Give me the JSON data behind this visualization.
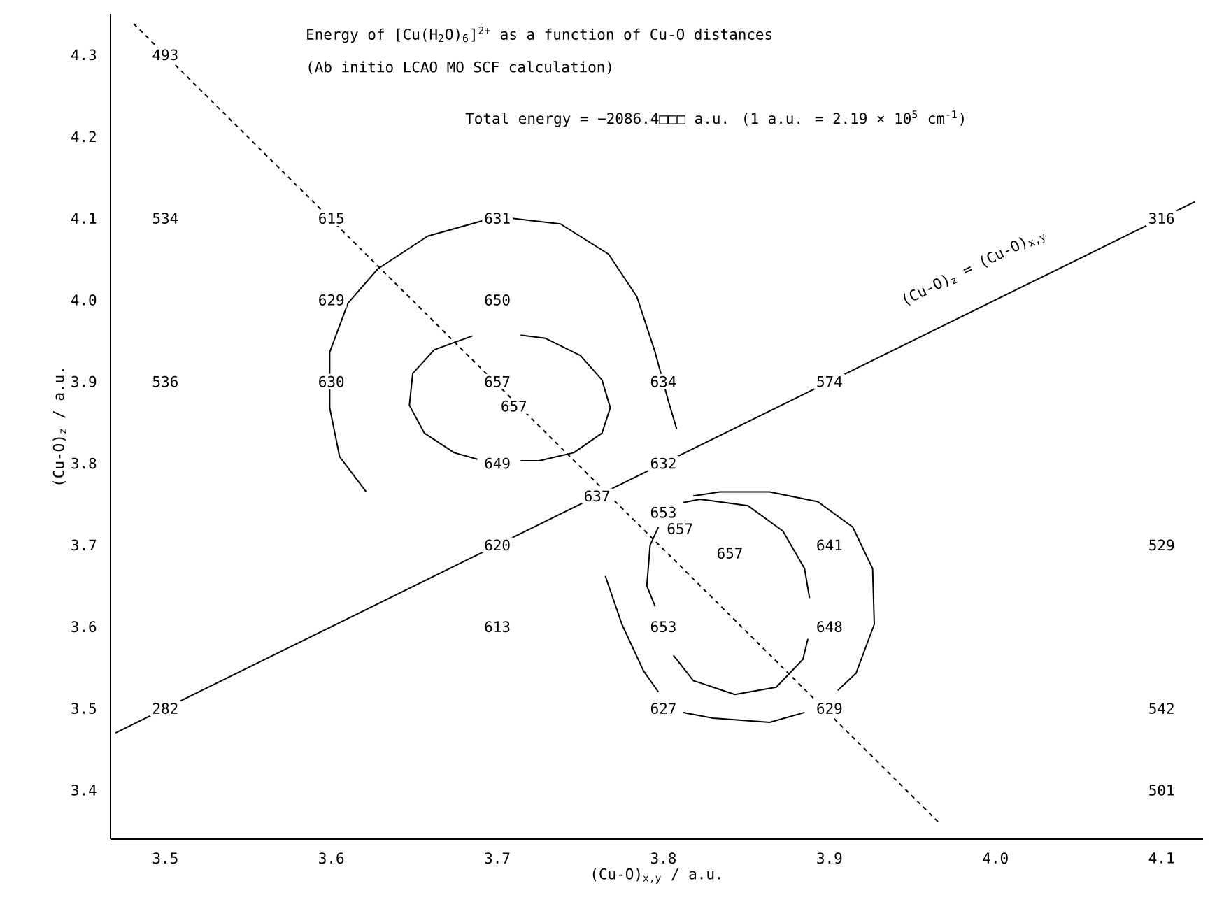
{
  "chart_data": {
    "type": "line",
    "title": "Energy of [Cu(H$_{2}$O)$_{6}$]$^{2+}$ as a function of Cu-O distances",
    "subtitle": "(Ab initio LCAO MO SCF calculation)",
    "xlabel": "(Cu-O)$_{x,y}$ / a.u.",
    "ylabel": "(Cu-O)$_{z}$ / a.u.",
    "xlim": [
      3.467,
      4.125
    ],
    "ylim": [
      3.34,
      4.35
    ],
    "xticks": [
      3.5,
      3.6,
      3.7,
      3.8,
      3.9,
      {
        "value": 4.0,
        "label": "4.0"
      },
      4.1
    ],
    "yticks": [
      3.4,
      3.5,
      3.6,
      3.7,
      3.8,
      3.9,
      {
        "value": 4.0,
        "label": "4.0"
      },
      4.1,
      4.2,
      4.3
    ],
    "grid": false,
    "series": [
      {
        "color": "#000000",
        "x": [
          3.47,
          4.12
        ],
        "values": [
          3.47,
          4.12
        ]
      },
      {
        "color": "#000000",
        "line_style": "dashed",
        "x": [
          3.481,
          3.967
        ],
        "values": [
          4.338,
          3.358
        ]
      },
      {
        "color": "#000000",
        "x": [
          3.685,
          3.662,
          3.649,
          3.647,
          3.656,
          3.674,
          3.688
        ],
        "values": [
          3.956,
          3.939,
          3.91,
          3.871,
          3.837,
          3.813,
          3.805
        ]
      },
      {
        "color": "#000000",
        "x": [
          3.714,
          3.729,
          3.75,
          3.763,
          3.768,
          3.763,
          3.746,
          3.725,
          3.714
        ],
        "values": [
          3.957,
          3.953,
          3.932,
          3.902,
          3.868,
          3.837,
          3.813,
          3.803,
          3.803
        ]
      },
      {
        "color": "#000000",
        "x": [
          3.621,
          3.605,
          3.599,
          3.599,
          3.61,
          3.628,
          3.658,
          3.7,
          3.738,
          3.767,
          3.784,
          3.795,
          3.803,
          3.808
        ],
        "values": [
          3.765,
          3.808,
          3.868,
          3.936,
          3.996,
          4.038,
          4.078,
          4.102,
          4.093,
          4.056,
          4.004,
          3.936,
          3.876,
          3.842
        ]
      },
      {
        "color": "#000000",
        "x": [
          3.812,
          3.822,
          3.851,
          3.872,
          3.885,
          3.888
        ],
        "values": [
          3.752,
          3.756,
          3.748,
          3.717,
          3.671,
          3.635
        ]
      },
      {
        "color": "#000000",
        "x": [
          3.887,
          3.884,
          3.868,
          3.843,
          3.818,
          3.806
        ],
        "values": [
          3.585,
          3.56,
          3.526,
          3.517,
          3.534,
          3.565
        ]
      },
      {
        "color": "#000000",
        "x": [
          3.795,
          3.79,
          3.792,
          3.797
        ],
        "values": [
          3.625,
          3.65,
          3.7,
          3.722
        ]
      },
      {
        "color": "#000000",
        "x": [
          3.765,
          3.775,
          3.788,
          3.797
        ],
        "values": [
          3.662,
          3.603,
          3.546,
          3.52
        ]
      },
      {
        "color": "#000000",
        "x": [
          3.812,
          3.83,
          3.864,
          3.885
        ],
        "values": [
          3.495,
          3.488,
          3.483,
          3.495
        ]
      },
      {
        "color": "#000000",
        "x": [
          3.905,
          3.916,
          3.927,
          3.926,
          3.914,
          3.893,
          3.864,
          3.834,
          3.818
        ],
        "values": [
          3.522,
          3.543,
          3.603,
          3.671,
          3.722,
          3.753,
          3.765,
          3.765,
          3.76
        ]
      }
    ],
    "annotations": [
      "Total energy = −2086.4□□□ a.u.  (1 a.u. = 2.19 × 10$^{5}$ cm$^{-1}$)",
      {
        "text": "(Cu-O)$_{z}$ = (Cu-O)$_{x,y}$",
        "x": 4.0,
        "y": 4.0
      },
      {
        "text": "493",
        "x": 3.5,
        "y": 4.3
      },
      {
        "text": "534",
        "x": 3.5,
        "y": 4.1
      },
      {
        "text": "615",
        "x": 3.6,
        "y": 4.1
      },
      {
        "text": "631",
        "x": 3.7,
        "y": 4.1
      },
      {
        "text": "316",
        "x": 4.1,
        "y": 4.1
      },
      {
        "text": "629",
        "x": 3.6,
        "y": 4.0
      },
      {
        "text": "650",
        "x": 3.7,
        "y": 4.0
      },
      {
        "text": "536",
        "x": 3.5,
        "y": 3.9
      },
      {
        "text": "630",
        "x": 3.6,
        "y": 3.9
      },
      {
        "text": "657",
        "x": 3.7,
        "y": 3.9
      },
      {
        "text": "634",
        "x": 3.8,
        "y": 3.9
      },
      {
        "text": "574",
        "x": 3.9,
        "y": 3.9
      },
      {
        "text": "657",
        "x": 3.71,
        "y": 3.87
      },
      {
        "text": "649",
        "x": 3.7,
        "y": 3.8
      },
      {
        "text": "632",
        "x": 3.8,
        "y": 3.8
      },
      {
        "text": "637",
        "x": 3.76,
        "y": 3.76
      },
      {
        "text": "620",
        "x": 3.7,
        "y": 3.7
      },
      {
        "text": "653",
        "x": 3.8,
        "y": 3.74
      },
      {
        "text": "657",
        "x": 3.81,
        "y": 3.72
      },
      {
        "text": "657",
        "x": 3.84,
        "y": 3.69
      },
      {
        "text": "641",
        "x": 3.9,
        "y": 3.7
      },
      {
        "text": "529",
        "x": 4.1,
        "y": 3.7
      },
      {
        "text": "613",
        "x": 3.7,
        "y": 3.6
      },
      {
        "text": "653",
        "x": 3.8,
        "y": 3.6
      },
      {
        "text": "648",
        "x": 3.9,
        "y": 3.6
      },
      {
        "text": "282",
        "x": 3.5,
        "y": 3.5
      },
      {
        "text": "627",
        "x": 3.8,
        "y": 3.5
      },
      {
        "text": "629",
        "x": 3.9,
        "y": 3.5
      },
      {
        "text": "542",
        "x": 4.1,
        "y": 3.5
      },
      {
        "text": "501",
        "x": 4.1,
        "y": 3.4
      }
    ]
  }
}
